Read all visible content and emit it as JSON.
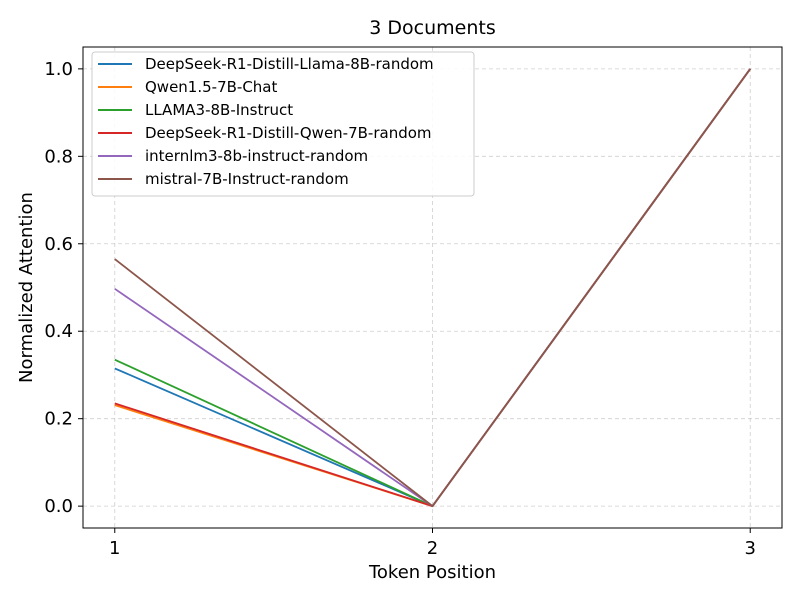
{
  "chart_data": {
    "type": "line",
    "title": "3 Documents",
    "xlabel": "Token Position",
    "ylabel": "Normalized Attention",
    "x": [
      1,
      2,
      3
    ],
    "x_ticks": [
      "1",
      "2",
      "3"
    ],
    "y_ticks": [
      "0.0",
      "0.2",
      "0.4",
      "0.6",
      "0.8",
      "1.0"
    ],
    "xlim": [
      0.9,
      3.1
    ],
    "ylim": [
      -0.05,
      1.05
    ],
    "grid": true,
    "legend_position": "top-left",
    "series": [
      {
        "name": "DeepSeek-R1-Distill-Llama-8B-random",
        "color": "#1f77b4",
        "values": [
          0.315,
          0.0,
          1.0
        ]
      },
      {
        "name": "Qwen1.5-7B-Chat",
        "color": "#ff7f0e",
        "values": [
          0.231,
          0.0,
          1.0
        ]
      },
      {
        "name": "LLAMA3-8B-Instruct",
        "color": "#2ca02c",
        "values": [
          0.335,
          0.0,
          1.0
        ]
      },
      {
        "name": "DeepSeek-R1-Distill-Qwen-7B-random",
        "color": "#d62728",
        "values": [
          0.235,
          0.0,
          1.0
        ]
      },
      {
        "name": "internlm3-8b-instruct-random",
        "color": "#9467bd",
        "values": [
          0.497,
          0.0,
          1.0
        ]
      },
      {
        "name": "mistral-7B-Instruct-random",
        "color": "#8c564b",
        "values": [
          0.565,
          0.0,
          1.0
        ]
      }
    ]
  }
}
